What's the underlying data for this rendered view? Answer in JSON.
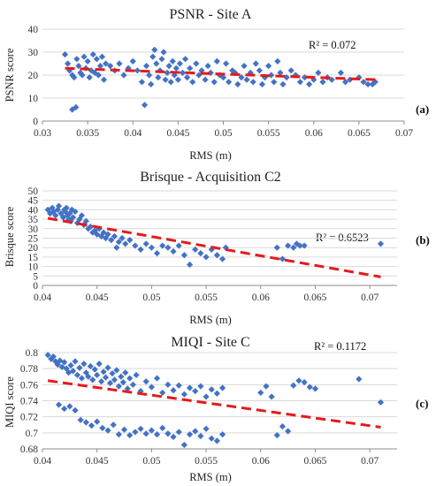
{
  "figure": {
    "panels": [
      {
        "id": "a",
        "tag": "(a)"
      },
      {
        "id": "b",
        "tag": "(b)"
      },
      {
        "id": "c",
        "tag": "(c)"
      }
    ]
  },
  "colors": {
    "marker": "#4472C4",
    "trendline": "#E41A1C",
    "grid": "#d9d9d9",
    "axis": "#8c8c8c"
  },
  "chart_data": [
    {
      "type": "scatter",
      "title": "PSNR - Site A",
      "xlabel": "RMS (m)",
      "ylabel": "PSNR score",
      "xlim": [
        0.03,
        0.07
      ],
      "ylim": [
        0,
        40
      ],
      "xticks": [
        0.03,
        0.035,
        0.04,
        0.045,
        0.05,
        0.055,
        0.06,
        0.065,
        0.07
      ],
      "xtick_labels": [
        "0.03",
        "0.035",
        "0.04",
        "0.045",
        "0.05",
        "0.055",
        "0.06",
        "0.065",
        "0.07"
      ],
      "yticks": [
        0,
        10,
        20,
        30,
        40
      ],
      "ytick_labels": [
        "0",
        "10",
        "20",
        "30",
        "40"
      ],
      "grid": "horizontal",
      "r2_label": "R² = 0.072",
      "trendline": {
        "x": [
          0.0325,
          0.067
        ],
        "y": [
          23.0,
          18.0
        ]
      },
      "points": [
        [
          0.0325,
          29
        ],
        [
          0.0328,
          25
        ],
        [
          0.033,
          22
        ],
        [
          0.0333,
          20
        ],
        [
          0.0335,
          19
        ],
        [
          0.0338,
          27
        ],
        [
          0.034,
          24
        ],
        [
          0.0342,
          21
        ],
        [
          0.0344,
          20
        ],
        [
          0.0346,
          28
        ],
        [
          0.0348,
          23
        ],
        [
          0.035,
          26
        ],
        [
          0.0352,
          19
        ],
        [
          0.0354,
          22
        ],
        [
          0.0356,
          29
        ],
        [
          0.0358,
          21
        ],
        [
          0.036,
          27
        ],
        [
          0.0362,
          20
        ],
        [
          0.0364,
          24
        ],
        [
          0.0366,
          28
        ],
        [
          0.0368,
          18
        ],
        [
          0.037,
          25
        ],
        [
          0.0333,
          5
        ],
        [
          0.0337,
          6
        ],
        [
          0.0375,
          24
        ],
        [
          0.038,
          22
        ],
        [
          0.0385,
          25
        ],
        [
          0.039,
          20
        ],
        [
          0.0395,
          23
        ],
        [
          0.04,
          26
        ],
        [
          0.0405,
          22
        ],
        [
          0.041,
          17
        ],
        [
          0.0413,
          7
        ],
        [
          0.0415,
          24
        ],
        [
          0.0418,
          20
        ],
        [
          0.042,
          16
        ],
        [
          0.0422,
          28
        ],
        [
          0.0424,
          31
        ],
        [
          0.0426,
          25
        ],
        [
          0.0428,
          19
        ],
        [
          0.043,
          22
        ],
        [
          0.0432,
          27
        ],
        [
          0.0434,
          30
        ],
        [
          0.0436,
          18
        ],
        [
          0.0438,
          21
        ],
        [
          0.044,
          24
        ],
        [
          0.0442,
          17
        ],
        [
          0.0444,
          26
        ],
        [
          0.0446,
          20
        ],
        [
          0.0448,
          23
        ],
        [
          0.045,
          18
        ],
        [
          0.0452,
          25
        ],
        [
          0.0455,
          21
        ],
        [
          0.0458,
          27
        ],
        [
          0.046,
          19
        ],
        [
          0.0463,
          23
        ],
        [
          0.0466,
          17
        ],
        [
          0.047,
          25
        ],
        [
          0.0473,
          20
        ],
        [
          0.0476,
          22
        ],
        [
          0.048,
          18
        ],
        [
          0.0483,
          24
        ],
        [
          0.0486,
          21
        ],
        [
          0.049,
          17
        ],
        [
          0.0493,
          26
        ],
        [
          0.0496,
          20
        ],
        [
          0.05,
          19
        ],
        [
          0.0503,
          25
        ],
        [
          0.0506,
          17
        ],
        [
          0.051,
          22
        ],
        [
          0.0513,
          21
        ],
        [
          0.0516,
          16
        ],
        [
          0.052,
          19
        ],
        [
          0.0523,
          24
        ],
        [
          0.0526,
          18
        ],
        [
          0.053,
          21
        ],
        [
          0.0533,
          17
        ],
        [
          0.0536,
          25
        ],
        [
          0.054,
          22
        ],
        [
          0.0543,
          16
        ],
        [
          0.0546,
          19
        ],
        [
          0.055,
          24
        ],
        [
          0.0553,
          20
        ],
        [
          0.0556,
          17
        ],
        [
          0.056,
          26
        ],
        [
          0.0563,
          21
        ],
        [
          0.0566,
          16
        ],
        [
          0.057,
          19
        ],
        [
          0.0575,
          22
        ],
        [
          0.058,
          20
        ],
        [
          0.0585,
          17
        ],
        [
          0.059,
          19
        ],
        [
          0.0595,
          16
        ],
        [
          0.06,
          18
        ],
        [
          0.0605,
          21
        ],
        [
          0.061,
          17
        ],
        [
          0.0615,
          19
        ],
        [
          0.062,
          18
        ],
        [
          0.063,
          21
        ],
        [
          0.0635,
          17
        ],
        [
          0.064,
          18
        ],
        [
          0.065,
          19
        ],
        [
          0.0655,
          17
        ],
        [
          0.066,
          16
        ],
        [
          0.0665,
          16
        ],
        [
          0.0668,
          17
        ]
      ]
    },
    {
      "type": "scatter",
      "title": "Brisque - Acquisition C2",
      "xlabel": "RMS (m)",
      "ylabel": "Brisque score",
      "xlim": [
        0.04,
        0.0725
      ],
      "ylim": [
        0,
        50
      ],
      "xticks": [
        0.04,
        0.045,
        0.05,
        0.055,
        0.06,
        0.065,
        0.07
      ],
      "xtick_labels": [
        "0.04",
        "0.045",
        "0.05",
        "0.055",
        "0.06",
        "0.065",
        "0.07"
      ],
      "yticks": [
        0,
        5,
        10,
        15,
        20,
        25,
        30,
        35,
        40,
        45,
        50
      ],
      "ytick_labels": [
        "0",
        "5",
        "10",
        "15",
        "20",
        "25",
        "30",
        "35",
        "40",
        "45",
        "50"
      ],
      "grid": "horizontal",
      "r2_label": "R² = 0.6523",
      "trendline": {
        "x": [
          0.0405,
          0.071
        ],
        "y": [
          35.5,
          4.5
        ]
      },
      "points": [
        [
          0.0405,
          40
        ],
        [
          0.0407,
          38
        ],
        [
          0.0409,
          41
        ],
        [
          0.041,
          39
        ],
        [
          0.0412,
          37
        ],
        [
          0.0414,
          40
        ],
        [
          0.0415,
          42
        ],
        [
          0.0417,
          38
        ],
        [
          0.0419,
          36
        ],
        [
          0.042,
          40
        ],
        [
          0.0421,
          39
        ],
        [
          0.0422,
          41
        ],
        [
          0.0423,
          37
        ],
        [
          0.0424,
          35
        ],
        [
          0.0425,
          38
        ],
        [
          0.0426,
          34
        ],
        [
          0.0427,
          40
        ],
        [
          0.0428,
          36
        ],
        [
          0.043,
          39
        ],
        [
          0.0432,
          33
        ],
        [
          0.0434,
          35
        ],
        [
          0.0436,
          37
        ],
        [
          0.0438,
          32
        ],
        [
          0.044,
          34
        ],
        [
          0.0442,
          30
        ],
        [
          0.0444,
          31
        ],
        [
          0.0446,
          28
        ],
        [
          0.0448,
          29
        ],
        [
          0.045,
          27
        ],
        [
          0.0452,
          30
        ],
        [
          0.0454,
          26
        ],
        [
          0.0456,
          28
        ],
        [
          0.0458,
          25
        ],
        [
          0.046,
          27
        ],
        [
          0.0463,
          24
        ],
        [
          0.0466,
          26
        ],
        [
          0.0468,
          20
        ],
        [
          0.047,
          23
        ],
        [
          0.0473,
          25
        ],
        [
          0.0476,
          22
        ],
        [
          0.048,
          24
        ],
        [
          0.0485,
          21
        ],
        [
          0.049,
          19
        ],
        [
          0.0495,
          22
        ],
        [
          0.05,
          20
        ],
        [
          0.0505,
          17
        ],
        [
          0.051,
          21
        ],
        [
          0.0515,
          20
        ],
        [
          0.052,
          18
        ],
        [
          0.0525,
          21
        ],
        [
          0.053,
          16
        ],
        [
          0.0535,
          11
        ],
        [
          0.054,
          19
        ],
        [
          0.0545,
          17
        ],
        [
          0.055,
          15
        ],
        [
          0.0555,
          19
        ],
        [
          0.056,
          16
        ],
        [
          0.0565,
          14
        ],
        [
          0.0568,
          20
        ],
        [
          0.0615,
          20
        ],
        [
          0.062,
          14
        ],
        [
          0.0625,
          21
        ],
        [
          0.063,
          20
        ],
        [
          0.0633,
          22
        ],
        [
          0.0636,
          21
        ],
        [
          0.064,
          21
        ],
        [
          0.071,
          22
        ]
      ]
    },
    {
      "type": "scatter",
      "title": "MIQI - Site C",
      "xlabel": "RMS (m)",
      "ylabel": "MIQI score",
      "xlim": [
        0.04,
        0.0725
      ],
      "ylim": [
        0.68,
        0.8
      ],
      "xticks": [
        0.04,
        0.045,
        0.05,
        0.055,
        0.06,
        0.065,
        0.07
      ],
      "xtick_labels": [
        "0.04",
        "0.045",
        "0.05",
        "0.055",
        "0.06",
        "0.065",
        "0.07"
      ],
      "yticks": [
        0.68,
        0.7,
        0.72,
        0.74,
        0.76,
        0.78,
        0.8
      ],
      "ytick_labels": [
        "0.68",
        "0.7",
        "0.72",
        "0.74",
        "0.76",
        "0.78",
        "0.8"
      ],
      "grid": "horizontal",
      "r2_label": "R² = 0.1172",
      "trendline": {
        "x": [
          0.0405,
          0.071
        ],
        "y": [
          0.765,
          0.707
        ]
      },
      "points": [
        [
          0.0405,
          0.797
        ],
        [
          0.0408,
          0.792
        ],
        [
          0.041,
          0.795
        ],
        [
          0.0412,
          0.789
        ],
        [
          0.0414,
          0.785
        ],
        [
          0.0416,
          0.79
        ],
        [
          0.0418,
          0.782
        ],
        [
          0.042,
          0.788
        ],
        [
          0.0422,
          0.78
        ],
        [
          0.0424,
          0.775
        ],
        [
          0.0426,
          0.784
        ],
        [
          0.0428,
          0.777
        ],
        [
          0.043,
          0.789
        ],
        [
          0.0432,
          0.772
        ],
        [
          0.0434,
          0.781
        ],
        [
          0.0436,
          0.768
        ],
        [
          0.0438,
          0.786
        ],
        [
          0.044,
          0.775
        ],
        [
          0.0442,
          0.77
        ],
        [
          0.0444,
          0.783
        ],
        [
          0.0446,
          0.766
        ],
        [
          0.0448,
          0.779
        ],
        [
          0.045,
          0.772
        ],
        [
          0.0452,
          0.786
        ],
        [
          0.0454,
          0.764
        ],
        [
          0.0456,
          0.776
        ],
        [
          0.0458,
          0.769
        ],
        [
          0.046,
          0.781
        ],
        [
          0.0462,
          0.762
        ],
        [
          0.0464,
          0.774
        ],
        [
          0.0466,
          0.766
        ],
        [
          0.0468,
          0.778
        ],
        [
          0.047,
          0.758
        ],
        [
          0.0472,
          0.77
        ],
        [
          0.0474,
          0.763
        ],
        [
          0.0476,
          0.775
        ],
        [
          0.0478,
          0.755
        ],
        [
          0.048,
          0.768
        ],
        [
          0.0483,
          0.76
        ],
        [
          0.0486,
          0.772
        ],
        [
          0.049,
          0.752
        ],
        [
          0.0495,
          0.764
        ],
        [
          0.05,
          0.757
        ],
        [
          0.0505,
          0.768
        ],
        [
          0.051,
          0.75
        ],
        [
          0.0515,
          0.76
        ],
        [
          0.052,
          0.753
        ],
        [
          0.0525,
          0.759
        ],
        [
          0.053,
          0.748
        ],
        [
          0.0535,
          0.756
        ],
        [
          0.054,
          0.752
        ],
        [
          0.0545,
          0.758
        ],
        [
          0.055,
          0.745
        ],
        [
          0.0555,
          0.754
        ],
        [
          0.056,
          0.749
        ],
        [
          0.0565,
          0.756
        ],
        [
          0.0415,
          0.735
        ],
        [
          0.042,
          0.73
        ],
        [
          0.0425,
          0.733
        ],
        [
          0.043,
          0.728
        ],
        [
          0.0435,
          0.716
        ],
        [
          0.044,
          0.713
        ],
        [
          0.0445,
          0.709
        ],
        [
          0.045,
          0.714
        ],
        [
          0.0455,
          0.706
        ],
        [
          0.046,
          0.703
        ],
        [
          0.0465,
          0.71
        ],
        [
          0.047,
          0.698
        ],
        [
          0.0475,
          0.704
        ],
        [
          0.048,
          0.697
        ],
        [
          0.0485,
          0.701
        ],
        [
          0.049,
          0.705
        ],
        [
          0.0495,
          0.699
        ],
        [
          0.05,
          0.703
        ],
        [
          0.0505,
          0.698
        ],
        [
          0.051,
          0.706
        ],
        [
          0.0515,
          0.699
        ],
        [
          0.052,
          0.695
        ],
        [
          0.0525,
          0.701
        ],
        [
          0.053,
          0.685
        ],
        [
          0.0535,
          0.698
        ],
        [
          0.054,
          0.702
        ],
        [
          0.0545,
          0.696
        ],
        [
          0.055,
          0.705
        ],
        [
          0.0555,
          0.693
        ],
        [
          0.056,
          0.69
        ],
        [
          0.0565,
          0.698
        ],
        [
          0.06,
          0.75
        ],
        [
          0.0605,
          0.758
        ],
        [
          0.061,
          0.745
        ],
        [
          0.0615,
          0.697
        ],
        [
          0.062,
          0.708
        ],
        [
          0.0625,
          0.702
        ],
        [
          0.063,
          0.759
        ],
        [
          0.0635,
          0.765
        ],
        [
          0.064,
          0.763
        ],
        [
          0.0645,
          0.757
        ],
        [
          0.065,
          0.755
        ],
        [
          0.069,
          0.767
        ],
        [
          0.071,
          0.738
        ]
      ]
    }
  ]
}
